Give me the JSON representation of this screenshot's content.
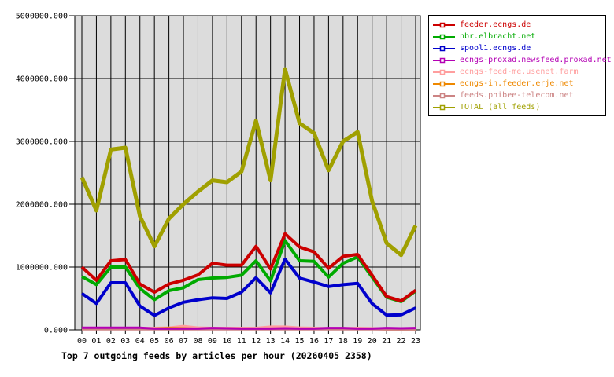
{
  "title": "Top 7 outgoing feeds by articles per hour (20260405 2358)",
  "chart_data": {
    "type": "line",
    "title": "Top 7 outgoing feeds by articles per hour (20260405 2358)",
    "xlabel": "",
    "ylabel": "",
    "ylim": [
      0,
      5000000
    ],
    "y_tick_step": 1000000,
    "y_tick_labels": [
      "0.000",
      "1000000.000",
      "2000000.000",
      "3000000.000",
      "4000000.000",
      "5000000.000"
    ],
    "grid": true,
    "plot_background": "#dcdcdc",
    "grid_color": "#000000",
    "legend_position": "top-right-outside",
    "categories": [
      "00",
      "01",
      "02",
      "03",
      "04",
      "05",
      "06",
      "07",
      "08",
      "09",
      "10",
      "11",
      "12",
      "13",
      "14",
      "15",
      "16",
      "17",
      "18",
      "19",
      "20",
      "21",
      "22",
      "23"
    ],
    "series": [
      {
        "name": "feeder.ecngs.de",
        "color": "#cc0000",
        "values": [
          1000000,
          790000,
          1100000,
          1120000,
          730000,
          600000,
          730000,
          790000,
          875000,
          1060000,
          1030000,
          1030000,
          1330000,
          970000,
          1530000,
          1320000,
          1240000,
          980000,
          1170000,
          1200000,
          870000,
          530000,
          460000,
          630000
        ]
      },
      {
        "name": "nbr.elbracht.net",
        "color": "#00aa00",
        "values": [
          850000,
          720000,
          1000000,
          1000000,
          660000,
          480000,
          625000,
          670000,
          800000,
          825000,
          835000,
          870000,
          1100000,
          780000,
          1420000,
          1100000,
          1090000,
          840000,
          1060000,
          1160000,
          840000,
          520000,
          450000,
          620000
        ]
      },
      {
        "name": "spool1.ecngs.de",
        "color": "#0000cc",
        "values": [
          580000,
          420000,
          750000,
          750000,
          380000,
          230000,
          350000,
          440000,
          480000,
          510000,
          500000,
          600000,
          830000,
          590000,
          1125000,
          825000,
          760000,
          690000,
          720000,
          740000,
          420000,
          235000,
          240000,
          350000
        ]
      },
      {
        "name": "ecngs-proxad.newsfeed.proxad.net",
        "color": "#b400b4",
        "values": [
          35000,
          35000,
          35000,
          35000,
          35000,
          20000,
          20000,
          20000,
          20000,
          30000,
          25000,
          20000,
          20000,
          20000,
          25000,
          20000,
          20000,
          30000,
          30000,
          20000,
          20000,
          30000,
          25000,
          30000
        ]
      },
      {
        "name": "ecngs-feed-me.usenet.farm",
        "color": "#ff9e9e",
        "values": [
          20000,
          20000,
          20000,
          20000,
          20000,
          25000,
          30000,
          55000,
          30000,
          25000,
          25000,
          25000,
          25000,
          45000,
          45000,
          30000,
          25000,
          20000,
          20000,
          25000,
          20000,
          15000,
          15000,
          20000
        ]
      },
      {
        "name": "ecngs-in.feeder.erje.net",
        "color": "#ee8800",
        "values": [
          15000,
          15000,
          15000,
          15000,
          15000,
          20000,
          30000,
          25000,
          15000,
          15000,
          15000,
          15000,
          15000,
          15000,
          20000,
          15000,
          15000,
          15000,
          15000,
          15000,
          15000,
          10000,
          10000,
          10000
        ]
      },
      {
        "name": "feeds.phibee-telecom.net",
        "color": "#cc8484",
        "values": [
          10000,
          10000,
          10000,
          10000,
          10000,
          10000,
          10000,
          10000,
          10000,
          10000,
          10000,
          10000,
          10000,
          10000,
          10000,
          10000,
          10000,
          10000,
          10000,
          10000,
          10000,
          8000,
          8000,
          8000
        ]
      },
      {
        "name": "TOTAL (all feeds)",
        "color": "#a0a000",
        "values": [
          2430000,
          1900000,
          2870000,
          2900000,
          1810000,
          1330000,
          1770000,
          2000000,
          2200000,
          2380000,
          2350000,
          2520000,
          3330000,
          2380000,
          4150000,
          3290000,
          3130000,
          2540000,
          3000000,
          3150000,
          2050000,
          1380000,
          1190000,
          1660000
        ]
      }
    ]
  }
}
